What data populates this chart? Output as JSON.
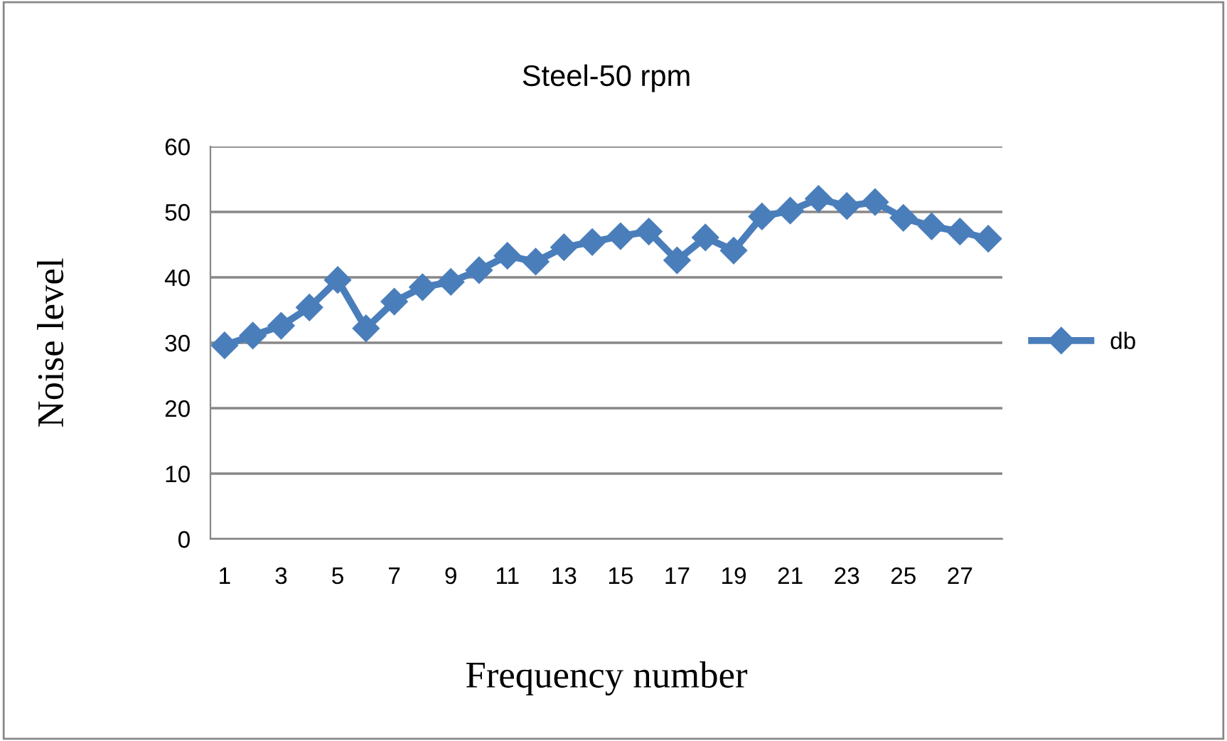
{
  "chart_data": {
    "type": "line",
    "title": "Steel-50 rpm",
    "xlabel": "Frequency number",
    "ylabel": "Noise level",
    "categories": [
      "1",
      null,
      "3",
      null,
      "5",
      null,
      "7",
      null,
      "9",
      null,
      "11",
      null,
      "13",
      null,
      "15",
      null,
      "17",
      null,
      "19",
      null,
      "21",
      null,
      "23",
      null,
      "25",
      null,
      "27",
      null
    ],
    "series": [
      {
        "name": "db",
        "color": "#4a7ebb",
        "values": [
          29.6,
          31.1,
          32.6,
          35.4,
          39.6,
          32.2,
          36.3,
          38.5,
          39.3,
          41.1,
          43.3,
          42.4,
          44.6,
          45.4,
          46.3,
          47.0,
          42.6,
          46.1,
          44.1,
          49.3,
          50.2,
          52.0,
          50.9,
          51.5,
          49.1,
          47.8,
          47.0,
          45.9
        ]
      }
    ],
    "ylim": [
      0,
      60
    ],
    "yticks": [
      0,
      10,
      20,
      30,
      40,
      50,
      60
    ],
    "grid": "y",
    "legend": "right",
    "marker": "diamond",
    "line_style": "solid"
  }
}
